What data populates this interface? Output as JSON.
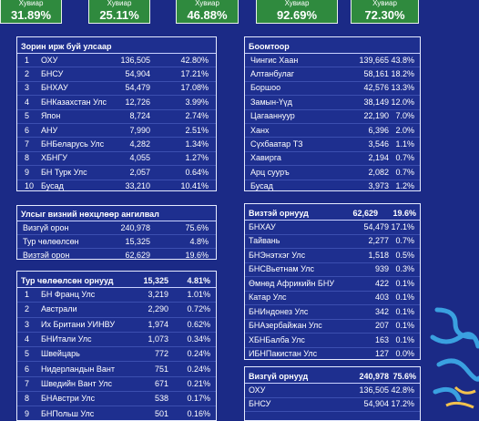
{
  "summary": [
    {
      "label": "Хувиар",
      "value": "31.89%"
    },
    {
      "label": "Хувиар",
      "value": "25.11%"
    },
    {
      "label": "Хувиар",
      "value": "46.88%"
    },
    {
      "label": "Хувиар",
      "value": "92.69%"
    },
    {
      "label": "Хувиар",
      "value": "72.30%"
    }
  ],
  "tables": [
    {
      "header": [
        "Зорин ирж буй улсаар"
      ],
      "rows": [
        [
          "1",
          "ОХУ",
          "136,505",
          "42.80%"
        ],
        [
          "2",
          "БНСУ",
          "54,904",
          "17.21%"
        ],
        [
          "3",
          "БНХАУ",
          "54,479",
          "17.08%"
        ],
        [
          "4",
          "БНКазахстан Улс",
          "12,726",
          "3.99%"
        ],
        [
          "5",
          "Япон",
          "8,724",
          "2.74%"
        ],
        [
          "6",
          "АНУ",
          "7,990",
          "2.51%"
        ],
        [
          "7",
          "БНБеларусь Улс",
          "4,282",
          "1.34%"
        ],
        [
          "8",
          "ХБНГУ",
          "4,055",
          "1.27%"
        ],
        [
          "9",
          "БН Турк Улс",
          "2,057",
          "0.64%"
        ],
        [
          "10",
          "Бусад",
          "33,210",
          "10.41%"
        ]
      ]
    },
    {
      "header": [
        "Боомтоор"
      ],
      "rows": [
        [
          "Чингис Хаан",
          "139,665",
          "43.8%"
        ],
        [
          "Алтанбулаг",
          "58,161",
          "18.2%"
        ],
        [
          "Боршоо",
          "42,576",
          "13.3%"
        ],
        [
          "Замын-Үүд",
          "38,149",
          "12.0%"
        ],
        [
          "Цагааннуур",
          "22,190",
          "7.0%"
        ],
        [
          "Ханх",
          "6,396",
          "2.0%"
        ],
        [
          "Сүхбаатар ТЗ",
          "3,546",
          "1.1%"
        ],
        [
          "Хавирга",
          "2,194",
          "0.7%"
        ],
        [
          "Арц сууръ",
          "2,082",
          "0.7%"
        ],
        [
          "Бусад",
          "3,973",
          "1.2%"
        ]
      ]
    },
    {
      "header": [
        "Улсыг визний нөхцлөөр ангилвал"
      ],
      "rows": [
        [
          "Визгүй орон",
          "240,978",
          "75.6%"
        ],
        [
          "Тур чөлөөлсөн",
          "15,325",
          "4.8%"
        ],
        [
          "Визтэй орон",
          "62,629",
          "19.6%"
        ]
      ]
    },
    {
      "header": [
        "Тур чөлөөлсөн орнууд",
        "15,325",
        "4.81%"
      ],
      "rows": [
        [
          "1",
          "БН Франц Улс",
          "3,219",
          "1.01%"
        ],
        [
          "2",
          "Австрали",
          "2,290",
          "0.72%"
        ],
        [
          "3",
          "Их Британи УИНВУ",
          "1,974",
          "0.62%"
        ],
        [
          "4",
          "БНИтали Улс",
          "1,073",
          "0.34%"
        ],
        [
          "5",
          "Швейцарь",
          "772",
          "0.24%"
        ],
        [
          "6",
          "Нидерландын Вант",
          "751",
          "0.24%"
        ],
        [
          "7",
          "Шведийн Вант Улс",
          "671",
          "0.21%"
        ],
        [
          "8",
          "БНАвстри Улс",
          "538",
          "0.17%"
        ],
        [
          "9",
          "БНПольш Улс",
          "501",
          "0.16%"
        ]
      ]
    },
    {
      "header": [
        "Визтэй орнууд",
        "62,629",
        "19.6%"
      ],
      "rows": [
        [
          "БНХАУ",
          "54,479",
          "17.1%"
        ],
        [
          "Тайвань",
          "2,277",
          "0.7%"
        ],
        [
          "БНЭнэтхэг Улс",
          "1,518",
          "0.5%"
        ],
        [
          "БНСВьетнам Улс",
          "939",
          "0.3%"
        ],
        [
          "Өмнөд Африкийн БНУ",
          "422",
          "0.1%"
        ],
        [
          "Катар Улс",
          "403",
          "0.1%"
        ],
        [
          "БНИндонез Улс",
          "342",
          "0.1%"
        ],
        [
          "БНАзербайжан Улс",
          "207",
          "0.1%"
        ],
        [
          "ХБНБалба Улс",
          "163",
          "0.1%"
        ],
        [
          "ИБНПакистан Улс",
          "127",
          "0.0%"
        ]
      ]
    },
    {
      "header": [
        "Визгүй орнууд",
        "240,978",
        "75.6%"
      ],
      "rows": [
        [
          "ОХУ",
          "136,505",
          "42.8%"
        ],
        [
          "БНСУ",
          "54,904",
          "17.2%"
        ]
      ]
    }
  ]
}
